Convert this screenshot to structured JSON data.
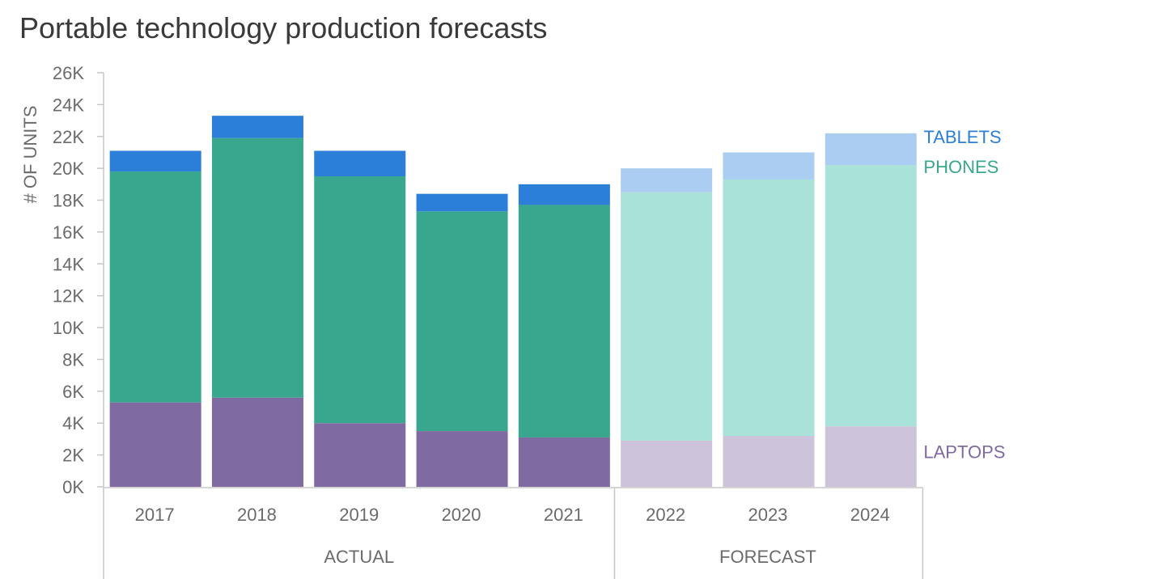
{
  "chart_data": {
    "type": "bar",
    "stacked": true,
    "title": "Portable technology production forecasts",
    "ylabel": "# OF UNITS",
    "xlabel": "",
    "ylim": [
      0,
      26000
    ],
    "yticks": [
      0,
      2000,
      4000,
      6000,
      8000,
      10000,
      12000,
      14000,
      16000,
      18000,
      20000,
      22000,
      24000,
      26000
    ],
    "ytick_labels": [
      "0K",
      "2K",
      "4K",
      "6K",
      "8K",
      "10K",
      "12K",
      "14K",
      "16K",
      "18K",
      "20K",
      "22K",
      "24K",
      "26K"
    ],
    "categories": [
      "2017",
      "2018",
      "2019",
      "2020",
      "2021",
      "2022",
      "2023",
      "2024"
    ],
    "groups": [
      {
        "label": "ACTUAL",
        "start": 0,
        "end": 4
      },
      {
        "label": "FORECAST",
        "start": 5,
        "end": 7
      }
    ],
    "series": [
      {
        "name": "LAPTOPS",
        "values": [
          5300,
          5600,
          4000,
          3500,
          3100,
          2900,
          3200,
          3800
        ],
        "color_actual": "#7f6aa1",
        "color_forecast": "#cdc3da"
      },
      {
        "name": "PHONES",
        "values": [
          14500,
          16300,
          15500,
          13800,
          14600,
          15600,
          16100,
          16400
        ],
        "color_actual": "#39a78e",
        "color_forecast": "#a8e2d8"
      },
      {
        "name": "TABLETS",
        "values": [
          1300,
          1400,
          1600,
          1100,
          1300,
          1500,
          1700,
          2000
        ],
        "color_actual": "#2b7fd8",
        "color_forecast": "#aacdf1"
      }
    ],
    "legend_placement": "right, inline labels",
    "grid": false
  }
}
